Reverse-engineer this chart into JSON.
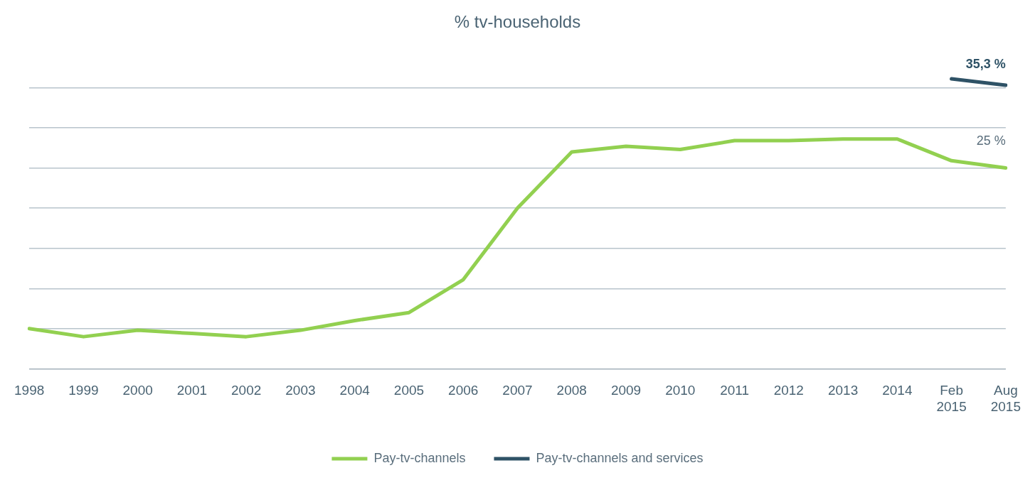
{
  "chart_data": {
    "type": "line",
    "title": "% tv-households",
    "categories": [
      "1998",
      "1999",
      "2000",
      "2001",
      "2002",
      "2003",
      "2004",
      "2005",
      "2006",
      "2007",
      "2008",
      "2009",
      "2010",
      "2011",
      "2012",
      "2013",
      "2014",
      "Feb 2015",
      "Aug 2015"
    ],
    "series": [
      {
        "name": "Pay-tv-channels",
        "color": "#92d050",
        "values": [
          5.0,
          4.0,
          4.8,
          4.4,
          4.0,
          4.8,
          6.0,
          7.0,
          11.1,
          20.0,
          27.0,
          27.7,
          27.3,
          28.4,
          28.4,
          28.6,
          28.6,
          25.9,
          25.0
        ],
        "value_labels": [
          null,
          null,
          null,
          null,
          null,
          null,
          null,
          null,
          null,
          null,
          null,
          null,
          null,
          null,
          null,
          null,
          null,
          null,
          "25 %"
        ]
      },
      {
        "name": "Pay-tv-channels and services",
        "color": "#2e5266",
        "values": [
          null,
          null,
          null,
          null,
          null,
          null,
          null,
          null,
          null,
          null,
          null,
          null,
          null,
          null,
          null,
          null,
          null,
          36.1,
          35.3
        ],
        "value_labels": [
          null,
          null,
          null,
          null,
          null,
          null,
          null,
          null,
          null,
          null,
          null,
          null,
          null,
          null,
          null,
          null,
          null,
          null,
          "35,3 %"
        ]
      }
    ],
    "yticks": [
      {
        "value": 0,
        "label": null
      },
      {
        "value": 5,
        "label": null
      },
      {
        "value": 10,
        "label": null
      },
      {
        "value": 15,
        "label": null
      },
      {
        "value": 20,
        "label": null
      },
      {
        "value": 25,
        "label": null
      },
      {
        "value": 30,
        "label": null
      },
      {
        "value": 35,
        "label": null
      }
    ],
    "tick_labels": "x",
    "grid": "y",
    "legend": "bottom",
    "marker": "none",
    "line_style": "solid"
  }
}
